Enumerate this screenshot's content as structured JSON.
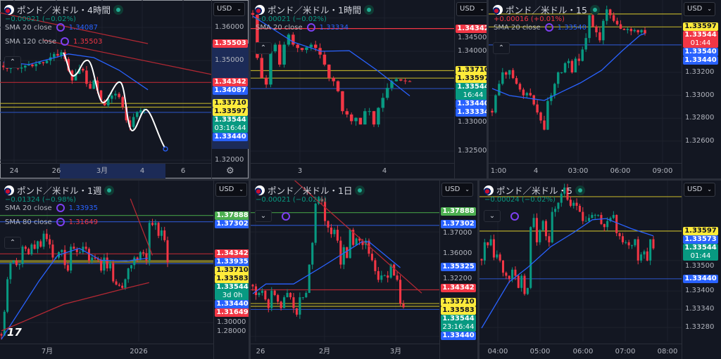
{
  "colors": {
    "up": "#089981",
    "down": "#f23645",
    "blue": "#2962ff",
    "yellow": "#ffeb3b",
    "green": "#4caf50",
    "bg": "#131722"
  },
  "panels": [
    {
      "title": "ポンド／米ドル・4時間",
      "currency": "USD",
      "change": "−0.00021 (−0.02%)",
      "change_color": "#089981",
      "legend": [
        {
          "name": "SMA 20 close",
          "value": "1.34087",
          "color": "#2962ff"
        },
        {
          "name": "SMA 120 close",
          "value": "1.35503",
          "color": "#f23645"
        }
      ],
      "collapse_icon": "chevron-up",
      "ylim": [
        1.31915,
        1.36825
      ],
      "price_ticks": [
        "1.36000",
        "1.35000",
        "1.32000"
      ],
      "time_ticks": [
        "24",
        "26",
        "3月",
        "4",
        "6"
      ],
      "labels": [
        {
          "v": "1.35503",
          "bg": "#f23645",
          "fg": "#fff"
        },
        {
          "v": "1.34342",
          "bg": "#f23645",
          "fg": "#fff"
        },
        {
          "v": "1.34087",
          "bg": "#2962ff",
          "fg": "#fff"
        },
        {
          "v": "1.33710",
          "bg": "#ffeb3b",
          "fg": "#131722"
        },
        {
          "v": "1.33597",
          "bg": "#ffeb3b",
          "fg": "#131722"
        },
        {
          "v": "1.33544",
          "bg": "#089981",
          "fg": "#fff",
          "sub": "03:16:44"
        },
        {
          "v": "1.33440",
          "bg": "#2962ff",
          "fg": "#fff"
        }
      ],
      "hlines": [
        {
          "v": 1.34342,
          "color": "#b22833"
        },
        {
          "v": 1.3371,
          "color": "#b5a82a"
        },
        {
          "v": 1.33597,
          "color": "#b5a82a"
        },
        {
          "v": 1.3344,
          "color": "#2a4fb8"
        }
      ],
      "closes": [
        1.348,
        1.3475,
        1.3478,
        1.3482,
        1.3476,
        1.3479,
        1.3485,
        1.3488,
        1.3483,
        1.349,
        1.3495,
        1.3492,
        1.35,
        1.351,
        1.352,
        1.3515,
        1.3525,
        1.3505,
        1.347,
        1.344,
        1.346,
        1.3475,
        1.347,
        1.343,
        1.3415,
        1.344,
        1.341,
        1.338,
        1.3365,
        1.3385,
        1.3395,
        1.34,
        1.339,
        1.336,
        1.332,
        1.33,
        1.333,
        1.3345,
        1.335,
        1.3354
      ],
      "lines": [
        {
          "color": "#2962ff",
          "points": [
            [
              0,
              1.3496
            ],
            [
              7,
              1.3488
            ],
            [
              18,
              1.352
            ],
            [
              25,
              1.3509
            ],
            [
              32,
              1.3471
            ],
            [
              40,
              1.3412
            ]
          ]
        },
        {
          "color": "#b22833",
          "points": [
            [
              -1,
              1.3644
            ],
            [
              40,
              1.3551
            ]
          ]
        },
        {
          "color": "#b22833",
          "points": [
            [
              11,
              1.3562
            ],
            [
              58.6,
              1.3456
            ]
          ]
        }
      ]
    },
    {
      "title": "ポンド／米ドル・1時間",
      "currency": "USD",
      "change": "−0.00021 (−0.02%)",
      "change_color": "#089981",
      "legend": [
        {
          "name": "SMA 20 close",
          "value": "1.33334",
          "color": "#2962ff"
        }
      ],
      "collapse_icon": "chevron-up",
      "ylim": [
        1.32321,
        1.34771
      ],
      "price_ticks": [
        "1.34500",
        "1.34000",
        "1.33000",
        "1.32500"
      ],
      "time_ticks": [
        "3",
        "4"
      ],
      "labels": [
        {
          "v": "1.34342",
          "bg": "#f23645",
          "fg": "#fff"
        },
        {
          "v": "1.33710",
          "bg": "#ffeb3b",
          "fg": "#131722"
        },
        {
          "v": "1.33597",
          "bg": "#ffeb3b",
          "fg": "#131722"
        },
        {
          "v": "1.33544",
          "bg": "#089981",
          "fg": "#fff",
          "sub": "16:44"
        },
        {
          "v": "1.33440",
          "bg": "#2962ff",
          "fg": "#fff"
        },
        {
          "v": "1.33334",
          "bg": "#2962ff",
          "fg": "#fff"
        }
      ],
      "hlines": [
        {
          "v": 1.34342,
          "color": "#f23645"
        },
        {
          "v": 1.3371,
          "color": "#b5a82a"
        },
        {
          "v": 1.33597,
          "color": "#b5a82a"
        },
        {
          "v": 1.3344,
          "color": "#2a4fb8"
        }
      ],
      "closes": [
        1.3455,
        1.339,
        1.336,
        1.335,
        1.34,
        1.341,
        1.338,
        1.341,
        1.3425,
        1.341,
        1.3405,
        1.3402,
        1.3406,
        1.341,
        1.3405,
        1.3395,
        1.338,
        1.336,
        1.3355,
        1.334,
        1.331,
        1.3305,
        1.3295,
        1.33,
        1.329,
        1.331,
        1.331,
        1.329,
        1.3315,
        1.333,
        1.3345,
        1.3355,
        1.3358,
        1.3356,
        1.3355,
        1.3354
      ],
      "lines": [
        {
          "color": "#2962ff",
          "points": [
            [
              0,
              1.3453
            ],
            [
              9,
              1.3414
            ],
            [
              15.2,
              1.34
            ],
            [
              21.5,
              1.3401
            ],
            [
              27.8,
              1.3371
            ],
            [
              35,
              1.3333
            ]
          ]
        }
      ]
    },
    {
      "title": "ポンド／米ドル・15",
      "currency": "USD",
      "change": "+0.00016 (+0.01%)",
      "change_color": "#f23645",
      "legend": [
        {
          "name": "SMA 20 close",
          "value": "1.33540",
          "color": "#2962ff"
        }
      ],
      "collapse_icon": "chevron-up",
      "ylim": [
        1.32409,
        1.33832
      ],
      "price_ticks": [
        "1.33200",
        "1.33000",
        "1.32800",
        "1.32600"
      ],
      "time_ticks": [
        "1:00",
        "4",
        "03:00",
        "06:00",
        "09:00"
      ],
      "labels": [
        {
          "v": "1.33597",
          "bg": "#ffeb3b",
          "fg": "#131722"
        },
        {
          "v": "1.33544",
          "bg": "#f23645",
          "fg": "#fff",
          "sub": "01:44"
        },
        {
          "v": "1.33540",
          "bg": "#2962ff",
          "fg": "#fff"
        },
        {
          "v": "1.33440",
          "bg": "#2962ff",
          "fg": "#fff"
        }
      ],
      "hlines": [
        {
          "v": 1.3371,
          "color": "#b5a82a"
        },
        {
          "v": 1.33597,
          "color": "#b5a82a"
        },
        {
          "v": 1.3344,
          "color": "#2a4fb8"
        }
      ],
      "closes": [
        1.3285,
        1.33,
        1.331,
        1.332,
        1.3318,
        1.3322,
        1.3315,
        1.331,
        1.3305,
        1.33,
        1.3302,
        1.33,
        1.3292,
        1.3285,
        1.3278,
        1.327,
        1.3295,
        1.33,
        1.331,
        1.332,
        1.332,
        1.3328,
        1.333,
        1.332,
        1.3332,
        1.333,
        1.334,
        1.335,
        1.337,
        1.336,
        1.3355,
        1.3348,
        1.3365,
        1.3375,
        1.337,
        1.3365,
        1.3362,
        1.3358,
        1.3357,
        1.3358,
        1.3356,
        1.3357,
        1.3355,
        1.3357,
        1.3354
      ],
      "lines": [
        {
          "color": "#2962ff",
          "points": [
            [
              0,
              1.33059
            ],
            [
              5,
              1.32998
            ],
            [
              15,
              1.32955
            ],
            [
              20.3,
              1.33034
            ],
            [
              25.4,
              1.33108
            ],
            [
              31.5,
              1.33218
            ],
            [
              37.5,
              1.3339
            ],
            [
              42.6,
              1.33525
            ],
            [
              44,
              1.3354
            ]
          ]
        }
      ]
    },
    {
      "title": "ポンド／米ドル・1週",
      "currency": "USD",
      "change": "−0.01324 (−0.98%)",
      "change_color": "#089981",
      "legend": [
        {
          "name": "SMA 20 close",
          "value": "1.33935",
          "color": "#2962ff"
        },
        {
          "name": "SMA 80 close",
          "value": "1.31649",
          "color": "#f23645"
        }
      ],
      "collapse_icon": "chevron-up",
      "ylim": [
        1.26259,
        1.41103
      ],
      "price_ticks": [
        "1.30000",
        "1.28000"
      ],
      "time_ticks": [
        "7月",
        "2026"
      ],
      "labels": [
        {
          "v": "1.37888",
          "bg": "#4caf50",
          "fg": "#fff"
        },
        {
          "v": "1.37302",
          "bg": "#2962ff",
          "fg": "#fff"
        },
        {
          "v": "1.34342",
          "bg": "#f23645",
          "fg": "#fff"
        },
        {
          "v": "1.33935",
          "bg": "#2962ff",
          "fg": "#fff"
        },
        {
          "v": "1.33710",
          "bg": "#ffeb3b",
          "fg": "#131722"
        },
        {
          "v": "1.33583",
          "bg": "#ffeb3b",
          "fg": "#131722"
        },
        {
          "v": "1.33544",
          "bg": "#089981",
          "fg": "#fff",
          "sub": "3d 0h"
        },
        {
          "v": "1.33440",
          "bg": "#2962ff",
          "fg": "#fff"
        },
        {
          "v": "1.31649",
          "bg": "#f23645",
          "fg": "#fff"
        }
      ],
      "hlines": [
        {
          "v": 1.37888,
          "color": "#3d8b40"
        },
        {
          "v": 1.37302,
          "color": "#2a4fb8"
        },
        {
          "v": 1.34342,
          "color": "#b22833"
        },
        {
          "v": 1.3371,
          "color": "#b5a82a"
        },
        {
          "v": 1.33583,
          "color": "#b5a82a"
        },
        {
          "v": 1.3344,
          "color": "#2a4fb8"
        }
      ],
      "closes": [
        1.268,
        1.29,
        1.32,
        1.335,
        1.337,
        1.333,
        1.334,
        1.35,
        1.348,
        1.343,
        1.352,
        1.348,
        1.355,
        1.35,
        1.362,
        1.357,
        1.352,
        1.34,
        1.34,
        1.345,
        1.347,
        1.333,
        1.328,
        1.35,
        1.348,
        1.345,
        1.345,
        1.35,
        1.348,
        1.337,
        1.34,
        1.339,
        1.338,
        1.328,
        1.34,
        1.33,
        1.335,
        1.318,
        1.315,
        1.314,
        1.312,
        1.32,
        1.33,
        1.333,
        1.34,
        1.338,
        1.345,
        1.344,
        1.337,
        1.372,
        1.37,
        1.372,
        1.36,
        1.365,
        1.356,
        1.3354
      ],
      "lines": [
        {
          "color": "#2962ff",
          "points": [
            [
              0,
              1.2646
            ],
            [
              12.4,
              1.3182
            ],
            [
              18.6,
              1.342
            ],
            [
              25.8,
              1.3485
            ],
            [
              33,
              1.3375
            ],
            [
              41.3,
              1.3368
            ],
            [
              48.5,
              1.3394
            ]
          ]
        },
        {
          "color": "#b22833",
          "points": [
            [
              0,
              1.2723
            ],
            [
              20.6,
              1.2969
            ],
            [
              41.3,
              1.3117
            ],
            [
              48.9,
              1.3169
            ]
          ]
        },
        {
          "color": "#b22833",
          "points": [
            [
              42.7,
              1.3943
            ],
            [
              50,
              1.342
            ]
          ]
        }
      ]
    },
    {
      "title": "ポンド／米ドル・1日",
      "currency": "USD",
      "change": "−0.00021 (−0.02%)",
      "change_color": "#089981",
      "legend": [],
      "collapse_icon": "chevron-down",
      "ylim": [
        1.3197,
        1.3936
      ],
      "price_ticks": [
        "1.37000",
        "1.36000",
        "1.32200"
      ],
      "time_ticks": [
        "26",
        "2月",
        "3月"
      ],
      "labels": [
        {
          "v": "1.37888",
          "bg": "#4caf50",
          "fg": "#fff"
        },
        {
          "v": "1.37302",
          "bg": "#2962ff",
          "fg": "#fff"
        },
        {
          "v": "1.35325",
          "bg": "#2962ff",
          "fg": "#fff"
        },
        {
          "v": "1.34342",
          "bg": "#f23645",
          "fg": "#fff"
        },
        {
          "v": "1.33710",
          "bg": "#ffeb3b",
          "fg": "#131722"
        },
        {
          "v": "1.33583",
          "bg": "#ffeb3b",
          "fg": "#131722"
        },
        {
          "v": "1.33544",
          "bg": "#089981",
          "fg": "#fff",
          "sub": "23:16:44"
        },
        {
          "v": "1.33440",
          "bg": "#2962ff",
          "fg": "#fff"
        }
      ],
      "hlines": [
        {
          "v": 1.37888,
          "color": "#3d8b40"
        },
        {
          "v": 1.37302,
          "color": "#2a4fb8"
        },
        {
          "v": 1.34342,
          "color": "#b22833"
        },
        {
          "v": 1.3371,
          "color": "#b5a82a"
        },
        {
          "v": 1.33583,
          "color": "#b5a82a"
        },
        {
          "v": 1.3344,
          "color": "#2a4fb8"
        }
      ],
      "closes": [
        1.345,
        1.341,
        1.342,
        1.343,
        1.339,
        1.335,
        1.343,
        1.341,
        1.338,
        1.335,
        1.34,
        1.342,
        1.34,
        1.335,
        1.332,
        1.34,
        1.34,
        1.342,
        1.355,
        1.365,
        1.383,
        1.385,
        1.384,
        1.375,
        1.372,
        1.369,
        1.371,
        1.366,
        1.355,
        1.363,
        1.358,
        1.371,
        1.364,
        1.367,
        1.366,
        1.364,
        1.366,
        1.36,
        1.357,
        1.352,
        1.348,
        1.35,
        1.35,
        1.349,
        1.355,
        1.35,
        1.348,
        1.337,
        1.3354
      ],
      "lines": [
        {
          "color": "#2962ff",
          "points": [
            [
              0,
              1.3416
            ],
            [
              4.2,
              1.3461
            ],
            [
              13,
              1.3461
            ],
            [
              21.6,
              1.3536
            ],
            [
              34.8,
              1.3655
            ],
            [
              37,
              1.3655
            ],
            [
              47,
              1.3536
            ]
          ]
        },
        {
          "color": "#b22833",
          "points": [
            [
              12.6,
              1.3946
            ],
            [
              53.8,
              1.3419
            ]
          ]
        }
      ]
    },
    {
      "title": "ポンド／米ドル・5",
      "currency": "USD",
      "change": "−0.00024 (−0.02%)",
      "change_color": "#089981",
      "legend": [],
      "collapse_icon": "chevron-down",
      "ylim": [
        1.33234,
        1.33763
      ],
      "price_ticks": [
        "1.33500",
        "1.33400",
        "1.33340",
        "1.33280"
      ],
      "time_ticks": [
        "04:00",
        "05:00",
        "06:00",
        "07:00",
        "08:00"
      ],
      "labels": [
        {
          "v": "1.33597",
          "bg": "#ffeb3b",
          "fg": "#131722"
        },
        {
          "v": "1.33573",
          "bg": "#2962ff",
          "fg": "#fff"
        },
        {
          "v": "1.33544",
          "bg": "#089981",
          "fg": "#fff",
          "sub": "01:44"
        },
        {
          "v": "1.33440",
          "bg": "#2962ff",
          "fg": "#fff"
        }
      ],
      "hlines": [
        {
          "v": 1.3371,
          "color": "#b5a82a"
        },
        {
          "v": 1.33597,
          "color": "#b5a82a"
        },
        {
          "v": 1.3344,
          "color": "#2a4fb8"
        }
      ],
      "closes": [
        1.335,
        1.3356,
        1.3355,
        1.3357,
        1.3351,
        1.3352,
        1.335,
        1.3346,
        1.3345,
        1.3344,
        1.3347,
        1.3345,
        1.3341,
        1.3345,
        1.3339,
        1.3341,
        1.3361,
        1.3364,
        1.3356,
        1.336,
        1.3363,
        1.3358,
        1.3356,
        1.3366,
        1.3367,
        1.3369,
        1.3372,
        1.3374,
        1.337,
        1.3368,
        1.3369,
        1.3368,
        1.3366,
        1.3363,
        1.3363,
        1.3364,
        1.3365,
        1.3365,
        1.3365,
        1.3362,
        1.3361,
        1.3363,
        1.3364,
        1.3365,
        1.3359,
        1.3358,
        1.3356,
        1.3356,
        1.3355,
        1.3355,
        1.3357,
        1.335,
        1.3352,
        1.3353,
        1.335,
        1.3357,
        1.3354
      ],
      "lines": [
        {
          "color": "#2962ff",
          "points": [
            [
              0,
              1.33278
            ],
            [
              9,
              1.3343
            ],
            [
              15,
              1.33477
            ],
            [
              22.6,
              1.33546
            ],
            [
              30,
              1.33592
            ],
            [
              36.1,
              1.33634
            ],
            [
              40.6,
              1.33638
            ],
            [
              49,
              1.33604
            ],
            [
              56,
              1.33581
            ]
          ]
        }
      ]
    }
  ]
}
